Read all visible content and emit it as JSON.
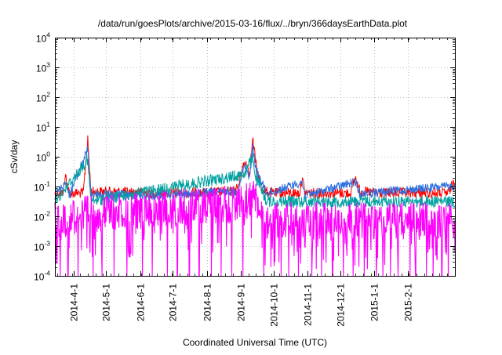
{
  "chart_data": {
    "type": "line",
    "title": "/data/run/goesPlots/archive/2015-03-16/flux/../bryn/366daysEarthData.plot",
    "xlabel": "Coordinated Universal Time (UTC)",
    "ylabel": "cSv/day",
    "yscale": "log",
    "ylim": [
      0.0001,
      10000
    ],
    "xlim": [
      "2014-03-15",
      "2015-03-16"
    ],
    "grid": true,
    "legend": "none",
    "x_ticks": [
      {
        "label": "2014-4-1",
        "date": "2014-04-01"
      },
      {
        "label": "2014-5-1",
        "date": "2014-05-01"
      },
      {
        "label": "2014-6-1",
        "date": "2014-06-01"
      },
      {
        "label": "2014-7-1",
        "date": "2014-07-01"
      },
      {
        "label": "2014-8-1",
        "date": "2014-08-01"
      },
      {
        "label": "2014-9-1",
        "date": "2014-09-01"
      },
      {
        "label": "2014-10-1",
        "date": "2014-10-01"
      },
      {
        "label": "2014-11-1",
        "date": "2014-11-01"
      },
      {
        "label": "2014-12-1",
        "date": "2014-12-01"
      },
      {
        "label": "2015-1-1",
        "date": "2015-01-01"
      },
      {
        "label": "2015-2-1",
        "date": "2015-02-01"
      }
    ],
    "y_ticks": [
      {
        "base": "10",
        "exp": "-4",
        "value": 0.0001
      },
      {
        "base": "10",
        "exp": "-3",
        "value": 0.001
      },
      {
        "base": "10",
        "exp": "-2",
        "value": 0.01
      },
      {
        "base": "10",
        "exp": "-1",
        "value": 0.1
      },
      {
        "base": "10",
        "exp": "0",
        "value": 1
      },
      {
        "base": "10",
        "exp": "1",
        "value": 10
      },
      {
        "base": "10",
        "exp": "2",
        "value": 100
      },
      {
        "base": "10",
        "exp": "3",
        "value": 1000
      },
      {
        "base": "10",
        "exp": "4",
        "value": 10000
      }
    ],
    "series": [
      {
        "color": "#ff0000",
        "points": [
          [
            "2014-03-15",
            0.09
          ],
          [
            "2014-03-22",
            0.09
          ],
          [
            "2014-03-25",
            0.35
          ],
          [
            "2014-03-28",
            0.09
          ],
          [
            "2014-04-10",
            0.09
          ],
          [
            "2014-04-14",
            6.0
          ],
          [
            "2014-04-17",
            0.1
          ],
          [
            "2014-05-10",
            0.1
          ],
          [
            "2014-06-15",
            0.09
          ],
          [
            "2014-07-20",
            0.09
          ],
          [
            "2014-08-25",
            0.1
          ],
          [
            "2014-08-30",
            0.15
          ],
          [
            "2014-09-02",
            0.6
          ],
          [
            "2014-09-06",
            1.0
          ],
          [
            "2014-09-09",
            0.4
          ],
          [
            "2014-09-12",
            6.0
          ],
          [
            "2014-09-15",
            0.8
          ],
          [
            "2014-09-20",
            0.12
          ],
          [
            "2014-09-25",
            0.1
          ],
          [
            "2014-10-01",
            0.09
          ],
          [
            "2014-10-25",
            0.09
          ],
          [
            "2014-10-27",
            0.3
          ],
          [
            "2014-10-30",
            0.09
          ],
          [
            "2014-12-10",
            0.09
          ],
          [
            "2014-12-15",
            0.3
          ],
          [
            "2014-12-19",
            0.1
          ],
          [
            "2015-01-05",
            0.09
          ],
          [
            "2015-02-15",
            0.09
          ],
          [
            "2015-03-10",
            0.09
          ],
          [
            "2015-03-16",
            0.25
          ]
        ]
      },
      {
        "color": "#2d6fe0",
        "points": [
          [
            "2014-03-15",
            0.07
          ],
          [
            "2014-03-25",
            0.2
          ],
          [
            "2014-03-28",
            0.07
          ],
          [
            "2014-04-14",
            2.5
          ],
          [
            "2014-04-17",
            0.08
          ],
          [
            "2014-06-15",
            0.07
          ],
          [
            "2014-08-30",
            0.1
          ],
          [
            "2014-09-04",
            0.7
          ],
          [
            "2014-09-09",
            0.3
          ],
          [
            "2014-09-12",
            3.0
          ],
          [
            "2014-09-15",
            0.5
          ],
          [
            "2014-09-25",
            0.08
          ],
          [
            "2014-10-27",
            0.2
          ],
          [
            "2014-10-30",
            0.07
          ],
          [
            "2014-12-15",
            0.2
          ],
          [
            "2014-12-19",
            0.08
          ],
          [
            "2015-03-16",
            0.15
          ]
        ]
      },
      {
        "color": "#00a0a0",
        "points": [
          [
            "2014-03-15",
            0.05
          ],
          [
            "2014-04-14",
            1.2
          ],
          [
            "2014-04-17",
            0.05
          ],
          [
            "2014-09-04",
            0.4
          ],
          [
            "2014-09-12",
            1.5
          ],
          [
            "2014-09-15",
            0.3
          ],
          [
            "2014-09-25",
            0.05
          ],
          [
            "2015-03-16",
            0.05
          ]
        ]
      },
      {
        "color": "#ff00ff",
        "points": [
          [
            "2014-03-15",
            0.03
          ],
          [
            "2014-04-14",
            0.05
          ],
          [
            "2014-09-04",
            0.12
          ],
          [
            "2014-09-12",
            0.2
          ],
          [
            "2014-09-25",
            0.03
          ],
          [
            "2015-03-16",
            0.03
          ]
        ]
      }
    ]
  }
}
